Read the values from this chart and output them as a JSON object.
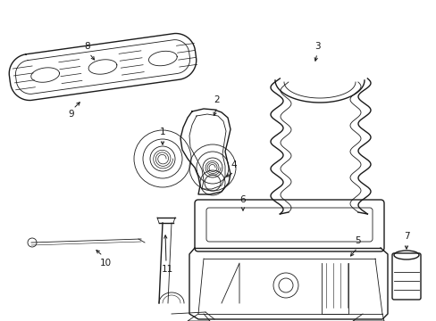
{
  "bg_color": "#ffffff",
  "line_color": "#1a1a1a",
  "lw": 1.0,
  "tlw": 0.6,
  "fs": 8,
  "figsize": [
    4.89,
    3.6
  ],
  "dpi": 100,
  "xlim": [
    0,
    489
  ],
  "ylim": [
    0,
    360
  ]
}
